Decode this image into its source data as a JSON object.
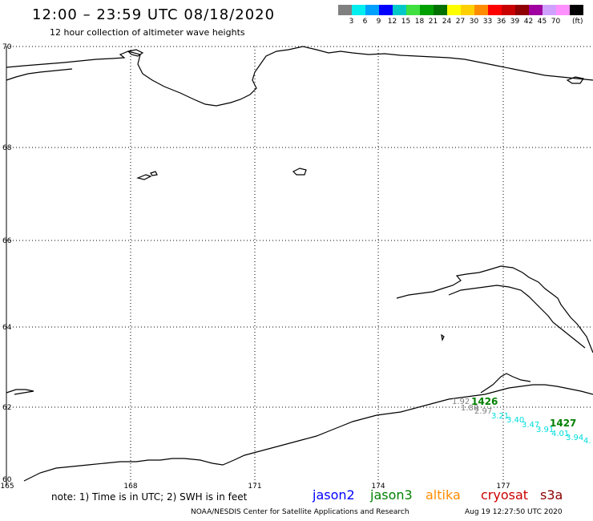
{
  "header": {
    "title": "12:00 – 23:59 UTC 08/18/2020",
    "subtitle": "12 hour collection of altimeter wave heights"
  },
  "legend": {
    "colors": [
      "#808080",
      "#00eeee",
      "#00a0ff",
      "#0000ff",
      "#00c8c8",
      "#40e040",
      "#00a000",
      "#007000",
      "#ffff00",
      "#ffd000",
      "#ff8c00",
      "#ff0000",
      "#c80000",
      "#900000",
      "#a000a0",
      "#d0a0ff",
      "#ff90ff",
      "#000000"
    ],
    "labels": [
      "3",
      "6",
      "9",
      "12",
      "15",
      "18",
      "21",
      "24",
      "27",
      "30",
      "33",
      "36",
      "39",
      "42",
      "45",
      "70"
    ],
    "unit": "(ft)"
  },
  "map": {
    "lat_labels": [
      "70",
      "68",
      "66",
      "64",
      "62",
      "60"
    ],
    "lon_labels": [
      "165",
      "168",
      "171",
      "174",
      "177"
    ],
    "pass_labels": [
      {
        "text": "1426",
        "color": "#008000"
      },
      {
        "text": "1427",
        "color": "#008000"
      }
    ],
    "swh_values": [
      {
        "text": "1.92",
        "color": "#808080"
      },
      {
        "text": "1.88",
        "color": "#808080"
      },
      {
        "text": "2.97",
        "color": "#808080"
      },
      {
        "text": "3.21",
        "color": "#00dddd"
      },
      {
        "text": "3.40",
        "color": "#00dddd"
      },
      {
        "text": "3.47",
        "color": "#00dddd"
      },
      {
        "text": "3.91",
        "color": "#00dddd"
      },
      {
        "text": "4.01",
        "color": "#00dddd"
      },
      {
        "text": "3.94",
        "color": "#00dddd"
      },
      {
        "text": "4.",
        "color": "#00dddd"
      }
    ]
  },
  "footer": {
    "note": "note: 1) Time is in UTC; 2) SWH is in feet",
    "satellites": [
      {
        "name": "jason2",
        "color": "#0000ff"
      },
      {
        "name": "jason3",
        "color": "#008000"
      },
      {
        "name": "altika",
        "color": "#ff8c00"
      },
      {
        "name": "cryosat",
        "color": "#cc0000"
      },
      {
        "name": "s3a",
        "color": "#8b0000"
      }
    ],
    "credit": "NOAA/NESDIS Center for Satellite Applications and Research",
    "timestamp": "Aug 19 12:27:50 UTC 2020"
  }
}
